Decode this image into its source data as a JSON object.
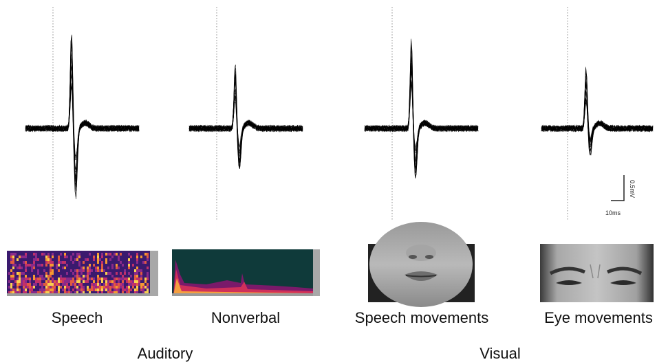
{
  "panels": [
    {
      "label": "Speech"
    },
    {
      "label": "Nonverbal"
    },
    {
      "label": "Speech movements"
    },
    {
      "label": "Eye movements"
    }
  ],
  "groups": [
    {
      "label": "Auditory"
    },
    {
      "label": "Visual"
    }
  ],
  "scale_bar": {
    "voltage": "0.5mV",
    "time": "10ms"
  }
}
